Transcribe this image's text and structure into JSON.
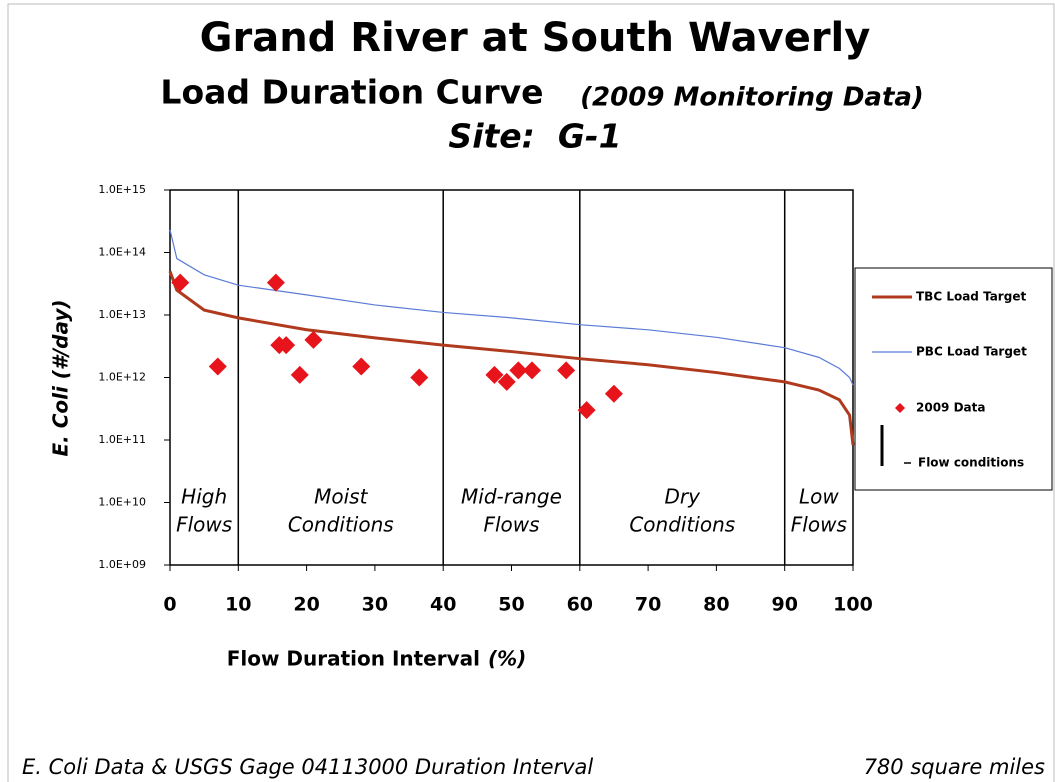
{
  "chart_data": {
    "type": "line",
    "title": "Grand River at South Waverly",
    "subtitle": "Load Duration Curve",
    "subtitle_note": "(2009 Monitoring Data)",
    "site": "Site:  G-1",
    "x_label": "Flow Duration Interval",
    "x_label_unit": "(%)",
    "y_label": "E. Coli (#/day)",
    "xlim": [
      0,
      100
    ],
    "xticks": [
      0,
      10,
      20,
      30,
      40,
      50,
      60,
      70,
      80,
      90,
      100
    ],
    "ylim": [
      1000000000.0,
      1000000000000000.0
    ],
    "y_scale": "log",
    "yticks": [
      {
        "value": 1000000000.0,
        "label": "1.0E+09"
      },
      {
        "value": 10000000000.0,
        "label": "1.0E+10"
      },
      {
        "value": 100000000000.0,
        "label": "1.0E+11"
      },
      {
        "value": 1000000000000.0,
        "label": "1.0E+12"
      },
      {
        "value": 10000000000000.0,
        "label": "1.0E+13"
      },
      {
        "value": 100000000000000.0,
        "label": "1.0E+14"
      },
      {
        "value": 1000000000000000.0,
        "label": "1.0E+15"
      }
    ],
    "legend": "right",
    "series": [
      {
        "name": "TBC Load Target",
        "color": "#b03a1e",
        "type": "line",
        "x": [
          0,
          1,
          5,
          10,
          20,
          30,
          40,
          50,
          60,
          70,
          80,
          90,
          95,
          98,
          99.5,
          100
        ],
        "values": [
          50000000000000.0,
          25000000000000.0,
          12000000000000.0,
          9000000000000.0,
          5800000000000.0,
          4300000000000.0,
          3300000000000.0,
          2600000000000.0,
          2000000000000.0,
          1600000000000.0,
          1200000000000.0,
          850000000000.0,
          630000000000.0,
          440000000000.0,
          250000000000.0,
          83000000000.0
        ]
      },
      {
        "name": "PBC Load Target",
        "color": "#5b7bd6",
        "type": "line",
        "x": [
          0,
          1,
          5,
          10,
          20,
          30,
          40,
          50,
          60,
          70,
          80,
          90,
          95,
          98,
          99.5,
          100
        ],
        "values": [
          230000000000000.0,
          80000000000000.0,
          44000000000000.0,
          30000000000000.0,
          21000000000000.0,
          14500000000000.0,
          11000000000000.0,
          9000000000000.0,
          7000000000000.0,
          5800000000000.0,
          4400000000000.0,
          3000000000000.0,
          2100000000000.0,
          1400000000000.0,
          1000000000000.0,
          760000000000.0
        ]
      },
      {
        "name": "2009 Data",
        "color": "#e8141c",
        "type": "scatter",
        "x": [
          1.5,
          7,
          15.5,
          16,
          17,
          19,
          21,
          28,
          36.5,
          47.5,
          49.3,
          51,
          53,
          58,
          61,
          65
        ],
        "values": [
          33000000000000.0,
          1500000000000.0,
          33000000000000.0,
          3300000000000.0,
          3300000000000.0,
          1100000000000.0,
          4000000000000.0,
          1500000000000.0,
          1000000000000.0,
          1100000000000.0,
          850000000000.0,
          1300000000000.0,
          1300000000000.0,
          1300000000000.0,
          300000000000.0,
          550000000000.0
        ]
      }
    ],
    "flow_conditions": {
      "name": "Flow conditions",
      "color": "#000000",
      "boundaries": [
        10,
        40,
        60,
        90
      ],
      "regions": [
        [
          "High",
          "Flows"
        ],
        [
          "Moist",
          "Conditions"
        ],
        [
          "Mid-range",
          "Flows"
        ],
        [
          "Dry",
          "Conditions"
        ],
        [
          "Low",
          "Flows"
        ]
      ]
    },
    "footer_left": "E. Coli Data & USGS Gage 04113000 Duration Interval",
    "footer_right": "780 square miles"
  }
}
